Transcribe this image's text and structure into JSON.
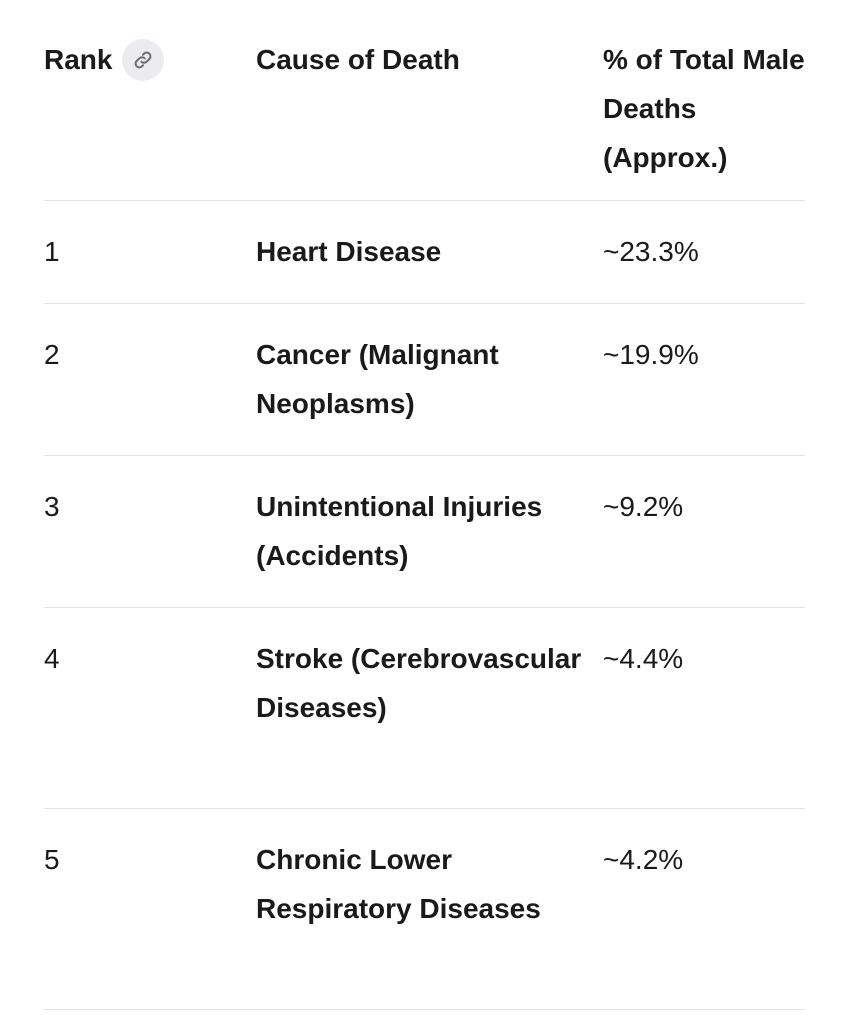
{
  "table": {
    "headers": {
      "rank": "Rank",
      "cause": "Cause of Death",
      "percent": "% of Total Male Deaths (Approx.)"
    },
    "header_icon": "link-icon",
    "rows": [
      {
        "rank": "1",
        "cause": "Heart Disease",
        "percent": "~23.3%"
      },
      {
        "rank": "2",
        "cause": "Cancer (Malignant Neoplasms)",
        "percent": "~19.9%"
      },
      {
        "rank": "3",
        "cause": "Unintentional Injuries (Accidents)",
        "percent": "~9.2%"
      },
      {
        "rank": "4",
        "cause": "Stroke (Cerebrovascular Diseases)",
        "percent": "~4.4%"
      },
      {
        "rank": "5",
        "cause": "Chronic Lower Respiratory Diseases",
        "percent": "~4.2%"
      }
    ]
  }
}
